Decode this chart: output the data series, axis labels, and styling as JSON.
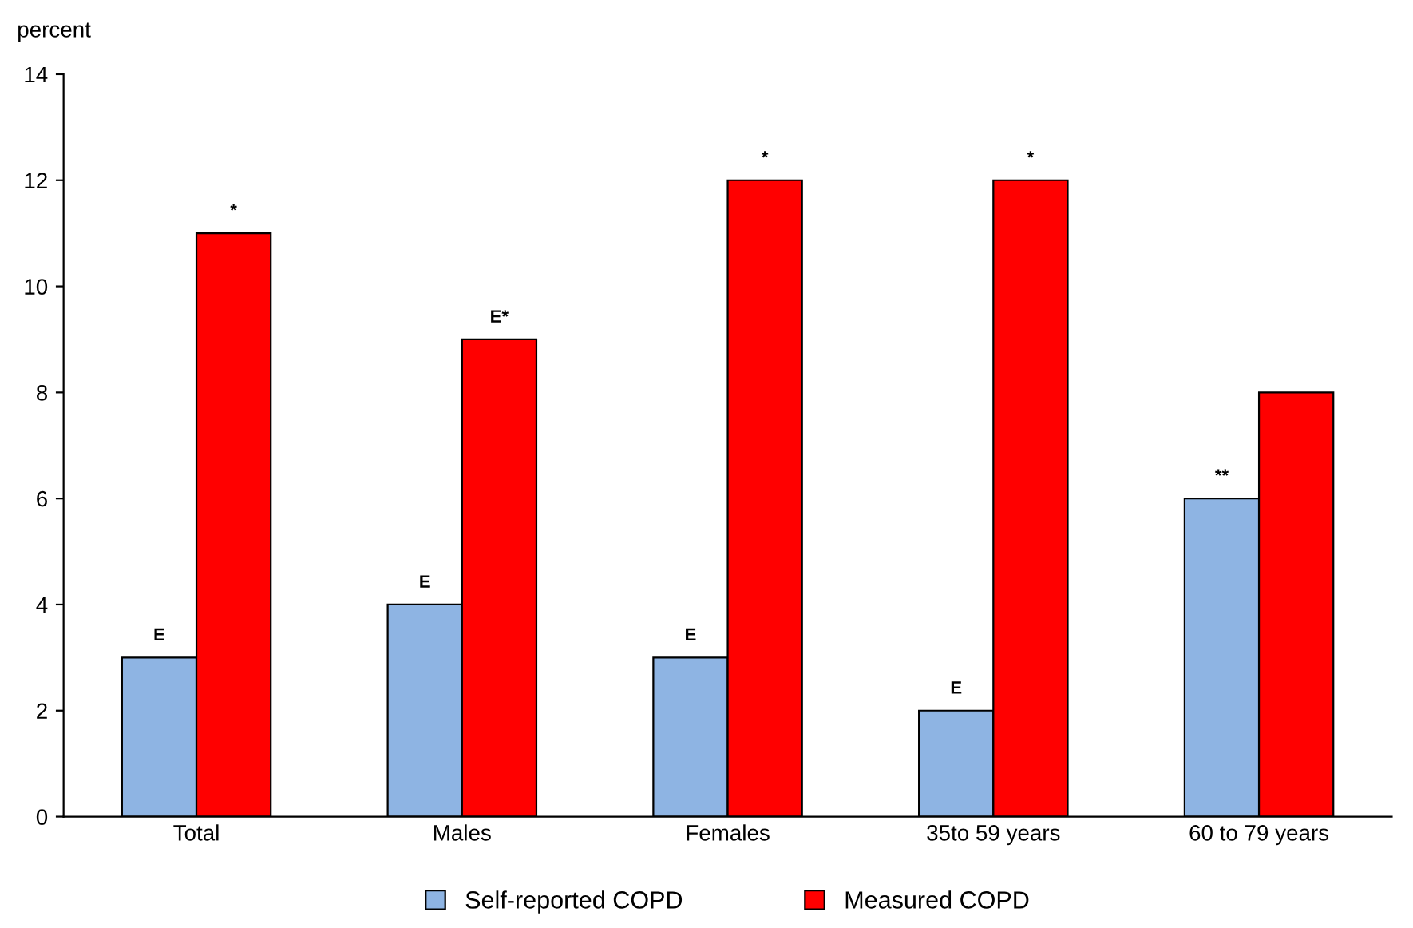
{
  "chart_data": {
    "type": "bar",
    "ylabel": "percent",
    "categories": [
      "Total",
      "Males",
      "Females",
      "35to 59 years",
      "60 to 79 years"
    ],
    "series": [
      {
        "name": "Self-reported COPD",
        "color": "#8eb4e3",
        "values": [
          3,
          4,
          3,
          2,
          6
        ],
        "value_labels": [
          "E",
          "E",
          "E",
          "E",
          "**"
        ]
      },
      {
        "name": "Measured COPD",
        "color": "#ff0000",
        "values": [
          11,
          9,
          12,
          12,
          8
        ],
        "value_labels": [
          "*",
          "E*",
          "*",
          "*",
          null
        ]
      }
    ],
    "ylim": [
      0,
      14
    ],
    "yticks": [
      0,
      2,
      4,
      6,
      8,
      10,
      12,
      14
    ],
    "grid": false,
    "legend": "bottom"
  }
}
